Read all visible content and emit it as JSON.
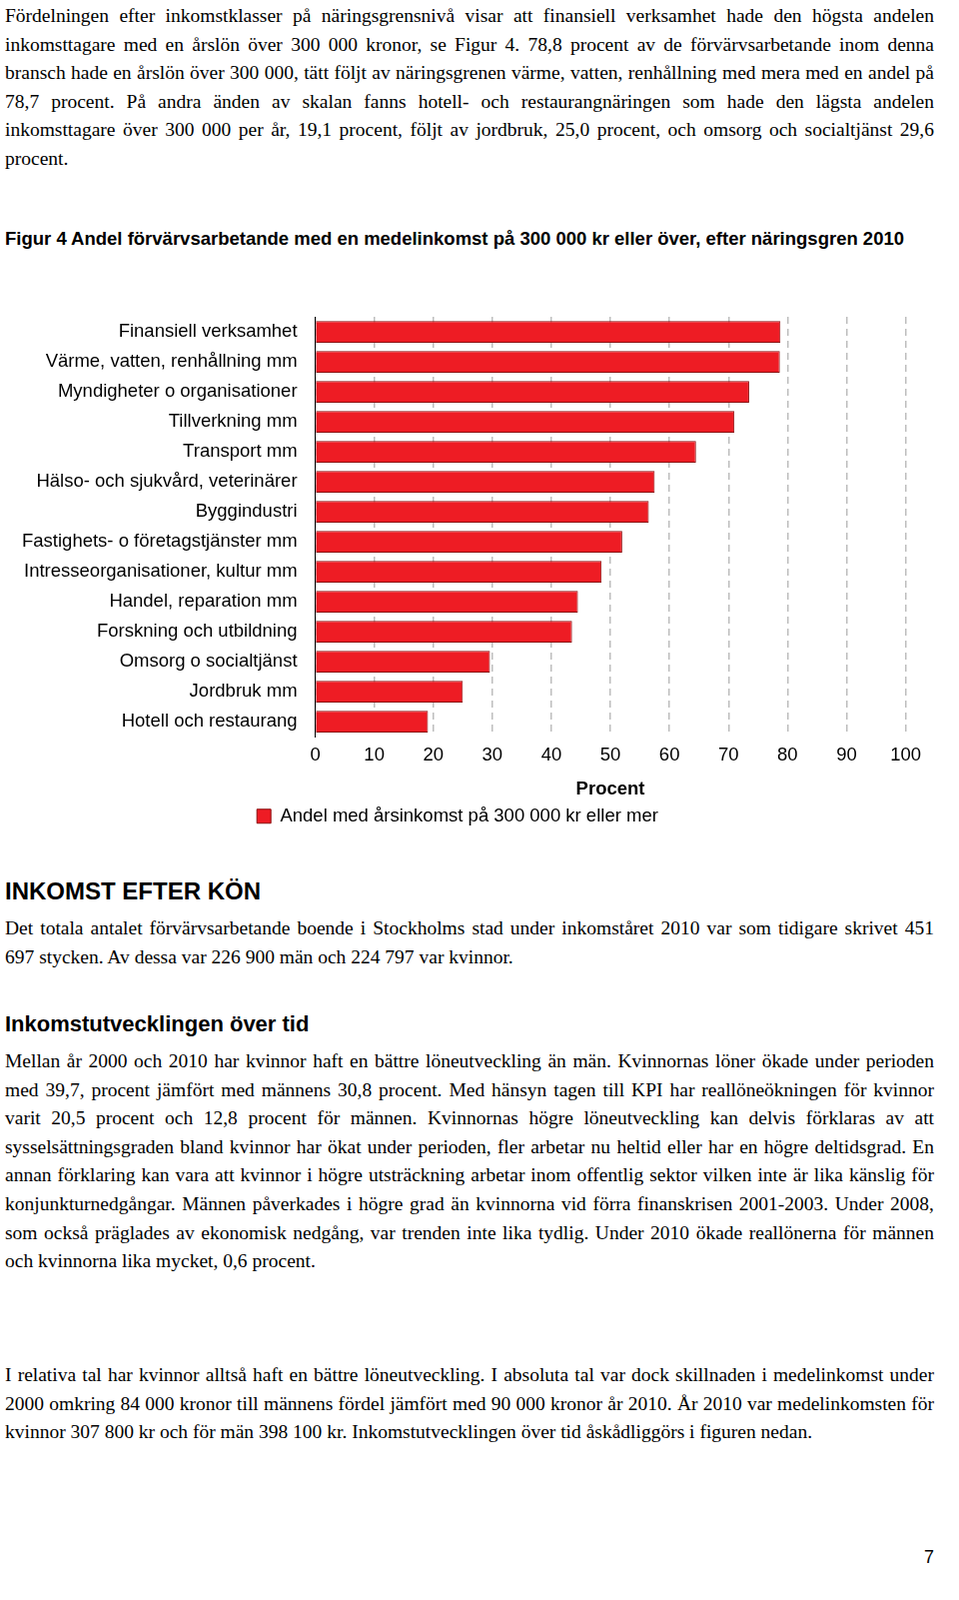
{
  "paragraph_1": "Fördelningen efter inkomstklasser på näringsgrensnivå visar att finansiell verksamhet hade den högsta andelen inkomsttagare med en årslön över 300 000 kronor, se Figur 4. 78,8 procent av de förvärvsarbetande inom denna bransch hade en årslön över 300 000, tätt följt av näringsgrenen värme, vatten, renhållning med mera med en andel på 78,7 procent. På andra änden av skalan fanns hotell- och restaurangnäringen som hade den lägsta andelen inkomsttagare över 300 000 per år, 19,1 procent, följt av jordbruk, 25,0 procent, och omsorg och socialtjänst 29,6 procent.",
  "figure_title": "Figur 4 Andel förvärvsarbetande med en medelinkomst på 300 000 kr eller över, efter näringsgren 2010",
  "chart_data": {
    "type": "bar",
    "orientation": "horizontal",
    "categories": [
      "Finansiell verksamhet",
      "Värme, vatten, renhållning mm",
      "Myndigheter o organisationer",
      "Tillverkning mm",
      "Transport mm",
      "Hälso- och sjukvård, veterinärer",
      "Byggindustri",
      "Fastighets- o företagstjänster mm",
      "Intresseorganisationer, kultur mm",
      "Handel, reparation mm",
      "Forskning och utbildning",
      "Omsorg o socialtjänst",
      "Jordbruk mm",
      "Hotell och restaurang"
    ],
    "series": [
      {
        "name": "Andel med årsinkomst på 300 000 kr eller mer",
        "color": "#ee1c24",
        "values": [
          78.8,
          78.7,
          73.5,
          71.0,
          64.5,
          57.5,
          56.5,
          52.0,
          48.5,
          44.5,
          43.5,
          29.6,
          25.0,
          19.1
        ]
      }
    ],
    "x_label": "Procent",
    "xlim": [
      0,
      100
    ],
    "xticks": [
      0,
      10,
      20,
      30,
      40,
      50,
      60,
      70,
      80,
      90,
      100
    ],
    "grid": true,
    "legend": "bottom"
  },
  "heading_1": "INKOMST EFTER KÖN",
  "paragraph_2": "Det totala antalet förvärvsarbetande boende i Stockholms stad under inkomståret 2010 var som tidigare skrivet 451 697 stycken. Av dessa var 226 900 män och 224 797 var kvinnor.",
  "heading_2": "Inkomstutvecklingen över tid",
  "paragraph_3": "Mellan år 2000 och 2010 har kvinnor haft en bättre löneutveckling än män. Kvinnornas löner ökade under perioden med 39,7, procent jämfört med männens 30,8 procent. Med hänsyn tagen till KPI har reallöneökningen för kvinnor varit 20,5 procent och 12,8 procent för männen. Kvinnornas högre löneutveckling kan delvis förklaras av att sysselsättningsgraden bland kvinnor har ökat under perioden, fler arbetar nu heltid eller har en högre deltidsgrad. En annan förklaring kan vara att kvinnor i högre utsträckning arbetar inom offentlig sektor vilken inte är lika känslig för konjunkturnedgångar. Männen påverkades i högre grad än kvinnorna vid förra finanskrisen 2001-2003. Under 2008, som också präglades av ekonomisk nedgång, var trenden inte lika tydlig. Under 2010 ökade reallönerna för männen och kvinnorna lika mycket, 0,6 procent.",
  "paragraph_4": "I relativa tal har kvinnor alltså haft en bättre löneutveckling. I absoluta tal var dock skillnaden i medelinkomst under 2000 omkring 84 000 kronor till männens fördel jämfört med 90 000 kronor år 2010. År 2010 var medelinkomsten för kvinnor 307 800 kr och för män 398 100 kr. Inkomstutvecklingen över tid åskådliggörs i figuren nedan.",
  "page_number": 7
}
